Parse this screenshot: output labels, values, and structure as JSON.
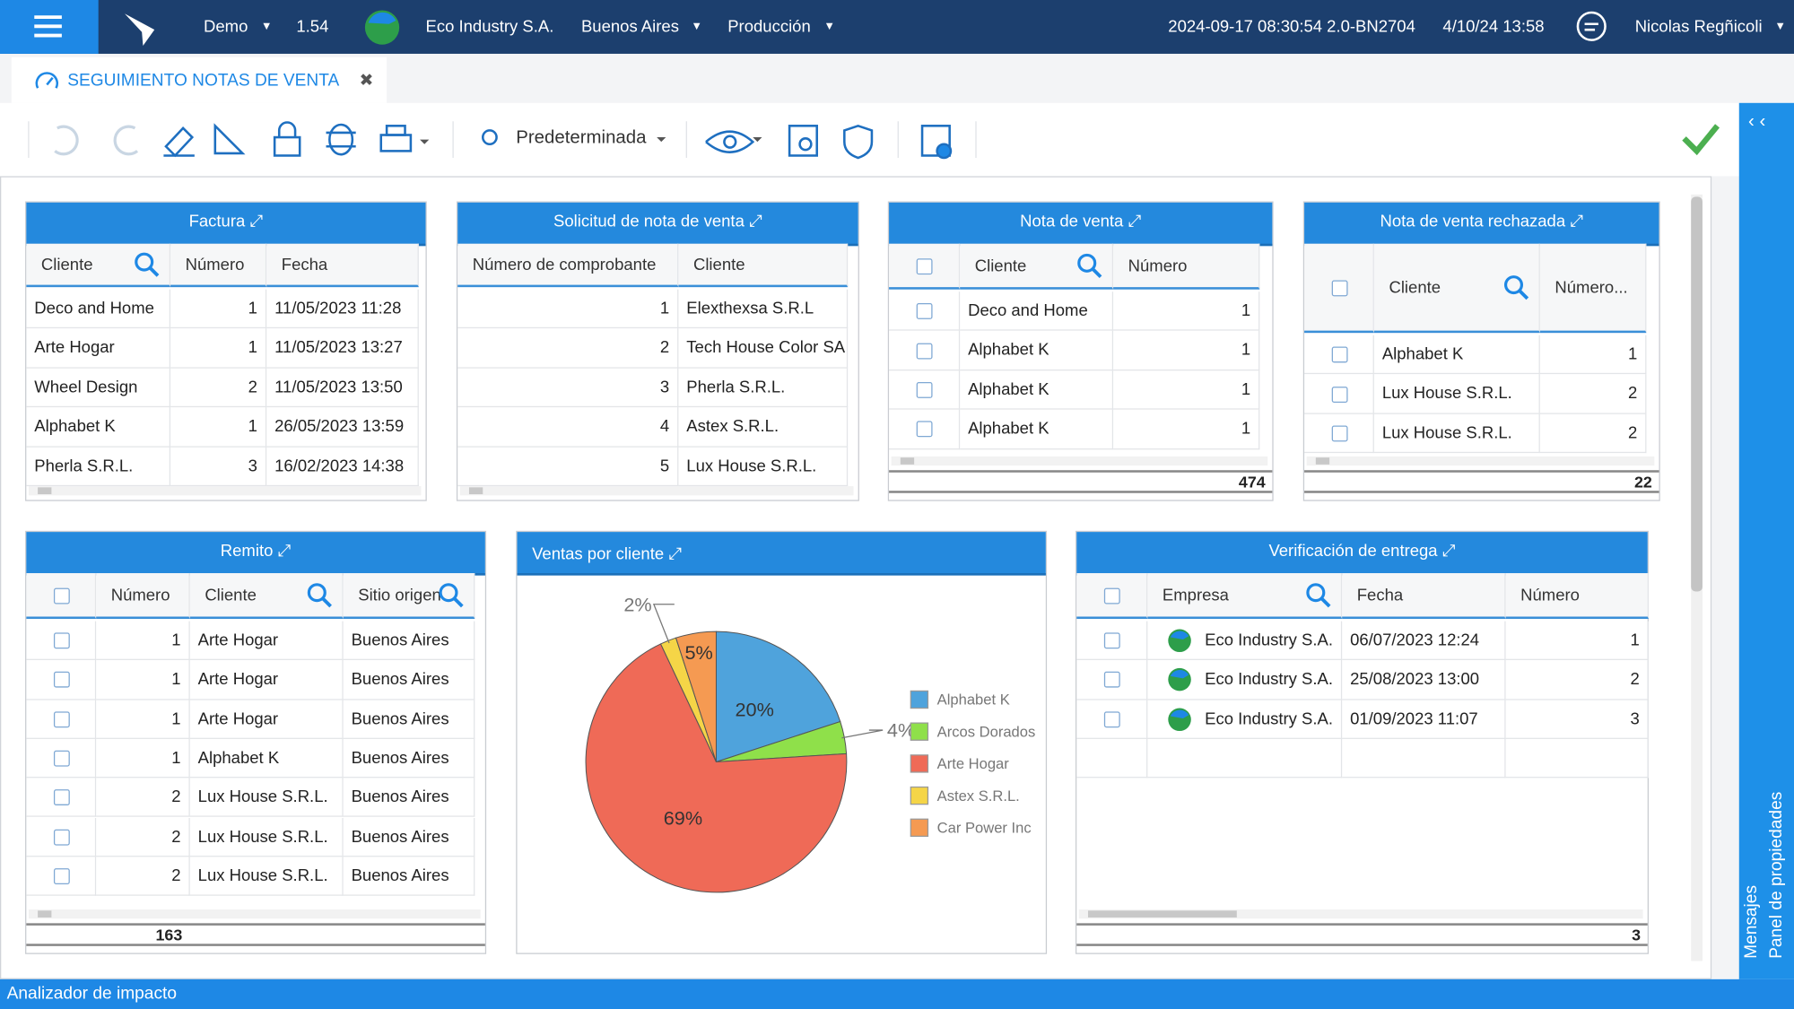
{
  "topbar": {
    "environment": "Demo",
    "version": "1.54",
    "company": "Eco Industry S.A.",
    "city": "Buenos Aires",
    "mode": "Producción",
    "build": "2024-09-17 08:30:54 2.0-BN2704",
    "date": "4/10/24 13:58",
    "user": "Nicolas Regñicoli"
  },
  "tab": {
    "title": "SEGUIMIENTO NOTAS DE VENTA"
  },
  "toolbar": {
    "view": "Predeterminada"
  },
  "panels": {
    "factura": {
      "title": "Factura",
      "columns": [
        "Cliente",
        "Número",
        "Fecha"
      ],
      "rows": [
        [
          "Deco and Home",
          1,
          "11/05/2023 11:28"
        ],
        [
          "Arte Hogar",
          1,
          "11/05/2023 13:27"
        ],
        [
          "Wheel Design",
          2,
          "11/05/2023 13:50"
        ],
        [
          "Alphabet K",
          1,
          "26/05/2023 13:59"
        ],
        [
          "Pherla S.R.L.",
          3,
          "16/02/2023 14:38"
        ]
      ]
    },
    "solicitud": {
      "title": "Solicitud de nota de venta",
      "columns": [
        "Número de comprobante",
        "Cliente"
      ],
      "rows": [
        [
          1,
          "Elexthexsa S.R.L"
        ],
        [
          2,
          "Tech House Color SA"
        ],
        [
          3,
          "Pherla S.R.L."
        ],
        [
          4,
          "Astex S.R.L."
        ],
        [
          5,
          "Lux House S.R.L."
        ]
      ]
    },
    "nota": {
      "title": "Nota de venta",
      "columns": [
        "Cliente",
        "Número"
      ],
      "rows": [
        [
          "Deco and Home",
          1
        ],
        [
          "Alphabet K",
          1
        ],
        [
          "Alphabet K",
          1
        ],
        [
          "Alphabet K",
          1
        ]
      ],
      "total": 474
    },
    "rechazada": {
      "title": "Nota de venta rechazada",
      "columns": [
        "Cliente",
        "Número..."
      ],
      "rows": [
        [
          "Alphabet K",
          1
        ],
        [
          "Lux House S.R.L.",
          2
        ],
        [
          "Lux House S.R.L.",
          2
        ]
      ],
      "total": 22
    },
    "remito": {
      "title": "Remito",
      "columns": [
        "Número",
        "Cliente",
        "Sitio origen"
      ],
      "rows": [
        [
          1,
          "Arte Hogar",
          "Buenos Aires"
        ],
        [
          1,
          "Arte Hogar",
          "Buenos Aires"
        ],
        [
          1,
          "Arte Hogar",
          "Buenos Aires"
        ],
        [
          1,
          "Alphabet K",
          "Buenos Aires"
        ],
        [
          2,
          "Lux House S.R.L.",
          "Buenos Aires"
        ],
        [
          2,
          "Lux House S.R.L.",
          "Buenos Aires"
        ],
        [
          2,
          "Lux House S.R.L.",
          "Buenos Aires"
        ]
      ],
      "total": 163
    },
    "verificacion": {
      "title": "Verificación de entrega",
      "columns": [
        "Empresa",
        "Fecha",
        "Número"
      ],
      "rows": [
        [
          "Eco Industry S.A.",
          "06/07/2023 12:24",
          1
        ],
        [
          "Eco Industry S.A.",
          "25/08/2023 13:00",
          2
        ],
        [
          "Eco Industry S.A.",
          "01/09/2023 11:07",
          3
        ]
      ],
      "total": 3
    }
  },
  "pie": {
    "type": "pie",
    "title": "Ventas por cliente",
    "categories": [
      "Alphabet K",
      "Arcos Dorados",
      "Arte Hogar",
      "Astex S.R.L.",
      "Car Power Inc"
    ],
    "values": [
      20,
      4,
      69,
      2,
      5
    ],
    "value_labels": [
      "20%",
      "4%",
      "69%",
      "2%",
      "5%"
    ],
    "colors": [
      "#4fa3dc",
      "#8fe04a",
      "#ef6a57",
      "#f5d547",
      "#f59a52"
    ]
  },
  "statusbar": {
    "label": "Analizador de impacto"
  },
  "sidebar": {
    "messages": "Mensajes",
    "properties": "Panel de propiedades"
  }
}
